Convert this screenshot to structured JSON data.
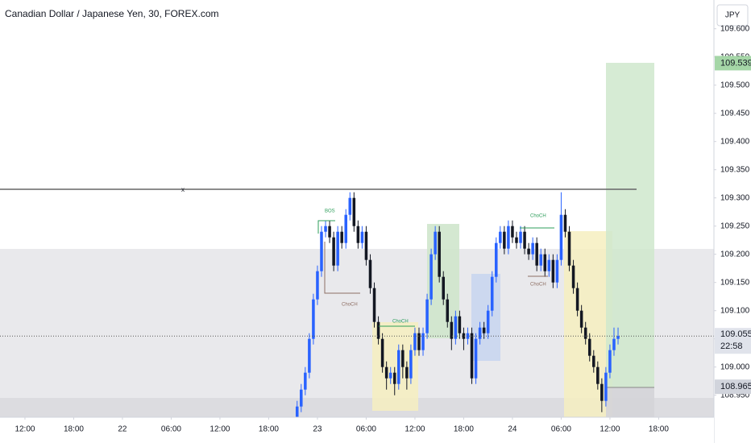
{
  "chart_data": {
    "type": "candlestick",
    "title": "Canadian Dollar / Japanese Yen, 30, FOREX.com",
    "currency": "JPY",
    "up_color": "#2962ff",
    "down_color": "#131722",
    "xlim": [
      -3.07,
      84.8
    ],
    "xticks": [
      {
        "value": 0,
        "label": "12:00"
      },
      {
        "value": 6,
        "label": "18:00"
      },
      {
        "value": 12,
        "label": "22"
      },
      {
        "value": 18,
        "label": "06:00"
      },
      {
        "value": 24,
        "label": "12:00"
      },
      {
        "value": 30,
        "label": "18:00"
      },
      {
        "value": 36,
        "label": "23"
      },
      {
        "value": 42,
        "label": "06:00"
      },
      {
        "value": 48,
        "label": "12:00"
      },
      {
        "value": 54,
        "label": "18:00"
      },
      {
        "value": 60,
        "label": "24"
      },
      {
        "value": 66,
        "label": "06:00"
      },
      {
        "value": 72,
        "label": "12:00"
      },
      {
        "value": 78,
        "label": "18:00"
      }
    ],
    "ylim": [
      108.911,
      109.651
    ],
    "yticks": [
      {
        "value": 108.95,
        "label": "108.950"
      },
      {
        "value": 109.0,
        "label": "109.000"
      },
      {
        "value": 109.05,
        "label": "109.050"
      },
      {
        "value": 109.1,
        "label": "109.100"
      },
      {
        "value": 109.15,
        "label": "109.150"
      },
      {
        "value": 109.2,
        "label": "109.200"
      },
      {
        "value": 109.25,
        "label": "109.250"
      },
      {
        "value": 109.3,
        "label": "109.300"
      },
      {
        "value": 109.35,
        "label": "109.350"
      },
      {
        "value": 109.4,
        "label": "109.400"
      },
      {
        "value": 109.45,
        "label": "109.450"
      },
      {
        "value": 109.5,
        "label": "109.500"
      },
      {
        "value": 109.55,
        "label": "109.550"
      },
      {
        "value": 109.6,
        "label": "109.600"
      }
    ],
    "x": [
      33.5,
      34,
      34.5,
      35,
      35.5,
      36,
      36.5,
      37,
      37.5,
      38,
      38.5,
      39,
      39.5,
      40,
      40.5,
      41,
      41.5,
      42,
      42.5,
      43,
      43.5,
      44,
      44.5,
      45,
      45.5,
      46,
      46.5,
      47,
      47.5,
      48,
      48.5,
      49,
      49.5,
      50,
      50.5,
      51,
      51.5,
      52,
      52.5,
      53,
      53.5,
      54,
      54.5,
      55,
      55.5,
      56,
      56.5,
      57,
      57.5,
      58,
      58.5,
      59,
      59.5,
      60,
      60.5,
      61,
      61.5,
      62,
      62.5,
      63,
      63.5,
      64,
      64.5,
      65,
      65.5,
      66,
      66.5,
      67,
      67.5,
      68,
      68.5,
      69,
      69.5,
      70,
      70.5,
      71,
      71.5,
      72,
      72.5,
      73
    ],
    "open": [
      108.91,
      108.93,
      108.96,
      108.99,
      109.05,
      109.12,
      109.17,
      109.24,
      109.25,
      109.23,
      109.18,
      109.24,
      109.22,
      109.27,
      109.3,
      109.25,
      109.22,
      109.24,
      109.19,
      109.14,
      109.08,
      109.05,
      109.0,
      108.98,
      108.99,
      108.97,
      109.03,
      109.0,
      108.98,
      109.03,
      109.06,
      109.03,
      109.06,
      109.12,
      109.2,
      109.24,
      109.16,
      109.12,
      109.08,
      109.05,
      109.09,
      109.06,
      109.05,
      109.06,
      108.98,
      109.05,
      109.07,
      109.06,
      109.1,
      109.16,
      109.22,
      109.24,
      109.21,
      109.25,
      109.23,
      109.22,
      109.24,
      109.21,
      109.2,
      109.22,
      109.18,
      109.2,
      109.17,
      109.19,
      109.15,
      109.19,
      109.27,
      109.24,
      109.18,
      109.14,
      109.1,
      109.07,
      109.05,
      109.02,
      109.0,
      108.97,
      108.94,
      108.99,
      109.03,
      109.05
    ],
    "high": [
      108.94,
      108.97,
      109.0,
      109.06,
      109.13,
      109.18,
      109.25,
      109.26,
      109.26,
      109.24,
      109.25,
      109.25,
      109.28,
      109.31,
      109.31,
      109.26,
      109.25,
      109.25,
      109.2,
      109.15,
      109.09,
      109.06,
      109.01,
      109.0,
      109.0,
      109.04,
      109.04,
      109.01,
      109.04,
      109.07,
      109.07,
      109.07,
      109.13,
      109.21,
      109.25,
      109.25,
      109.17,
      109.13,
      109.09,
      109.1,
      109.1,
      109.07,
      109.07,
      109.07,
      109.06,
      109.08,
      109.08,
      109.11,
      109.17,
      109.23,
      109.25,
      109.25,
      109.26,
      109.26,
      109.24,
      109.25,
      109.25,
      109.22,
      109.23,
      109.23,
      109.21,
      109.21,
      109.2,
      109.2,
      109.2,
      109.31,
      109.28,
      109.25,
      109.19,
      109.15,
      109.11,
      109.08,
      109.06,
      109.03,
      109.01,
      108.98,
      109.0,
      109.04,
      109.07,
      109.07
    ],
    "low": [
      108.9,
      108.92,
      108.95,
      108.98,
      109.04,
      109.11,
      109.16,
      109.23,
      109.22,
      109.17,
      109.17,
      109.21,
      109.21,
      109.26,
      109.24,
      109.21,
      109.21,
      109.18,
      109.13,
      109.07,
      109.04,
      108.99,
      108.96,
      108.97,
      108.95,
      108.96,
      108.98,
      108.96,
      108.97,
      109.02,
      109.02,
      109.02,
      109.05,
      109.11,
      109.19,
      109.15,
      109.11,
      109.07,
      109.03,
      109.04,
      109.05,
      109.03,
      109.04,
      108.97,
      108.97,
      109.04,
      109.05,
      109.05,
      109.09,
      109.15,
      109.21,
      109.2,
      109.2,
      109.22,
      109.21,
      109.21,
      109.2,
      109.19,
      109.19,
      109.17,
      109.17,
      109.16,
      109.16,
      109.14,
      109.14,
      109.18,
      109.23,
      109.17,
      109.13,
      109.09,
      109.06,
      109.04,
      109.01,
      108.99,
      108.96,
      108.92,
      108.93,
      108.98,
      109.02,
      109.04
    ],
    "close": [
      108.93,
      108.96,
      108.99,
      109.05,
      109.12,
      109.17,
      109.24,
      109.25,
      109.23,
      109.18,
      109.24,
      109.22,
      109.27,
      109.3,
      109.25,
      109.22,
      109.24,
      109.19,
      109.14,
      109.08,
      109.05,
      109.0,
      108.98,
      108.99,
      108.97,
      109.03,
      109.0,
      108.98,
      109.03,
      109.06,
      109.03,
      109.06,
      109.12,
      109.2,
      109.24,
      109.16,
      109.12,
      109.08,
      109.05,
      109.09,
      109.06,
      109.05,
      109.06,
      108.98,
      109.05,
      109.07,
      109.06,
      109.1,
      109.16,
      109.22,
      109.24,
      109.21,
      109.25,
      109.23,
      109.22,
      109.24,
      109.21,
      109.2,
      109.22,
      109.18,
      109.2,
      109.17,
      109.19,
      109.15,
      109.19,
      109.27,
      109.24,
      109.18,
      109.14,
      109.1,
      109.07,
      109.05,
      109.02,
      109.0,
      108.97,
      108.94,
      108.99,
      109.03,
      109.05,
      109.055
    ],
    "current_price": 109.055,
    "countdown": "22:58",
    "target_price": 109.539,
    "entry_price": 108.965,
    "annotations": [
      "BOS",
      "ChoCH",
      "ChoCH",
      "ChoCH",
      "ChoCH"
    ],
    "line_marker": "x"
  }
}
